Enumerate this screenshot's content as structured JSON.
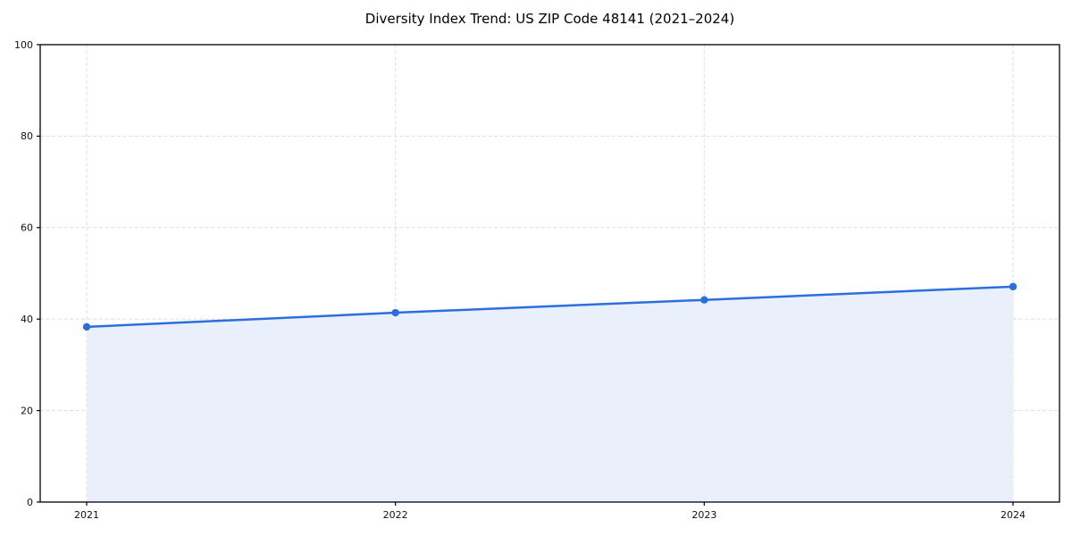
{
  "page": {
    "title": "Diversity Index Trend: US ZIP Code 48141 (2021–2024)"
  },
  "chart_data": {
    "type": "line",
    "title": "Diversity Index Trend: US ZIP Code 48141 (2021–2024)",
    "x": [
      "2021",
      "2022",
      "2023",
      "2024"
    ],
    "series": [
      {
        "name": "Diversity Index",
        "values": [
          38.3,
          41.4,
          44.2,
          47.1
        ]
      }
    ],
    "xlabel": "",
    "ylabel": "",
    "ylim": [
      0,
      100
    ],
    "yticks": [
      0,
      20,
      40,
      60,
      80,
      100
    ],
    "grid": true,
    "grid_style": "dashed",
    "legend": "none",
    "area_fill": true,
    "marker": "circle",
    "colors": {
      "line": "#2b6fdf",
      "marker": "#2b6fdf",
      "fill": "#eaeffc",
      "grid": "#dedede",
      "spine": "#000000",
      "text": "#111111"
    }
  }
}
